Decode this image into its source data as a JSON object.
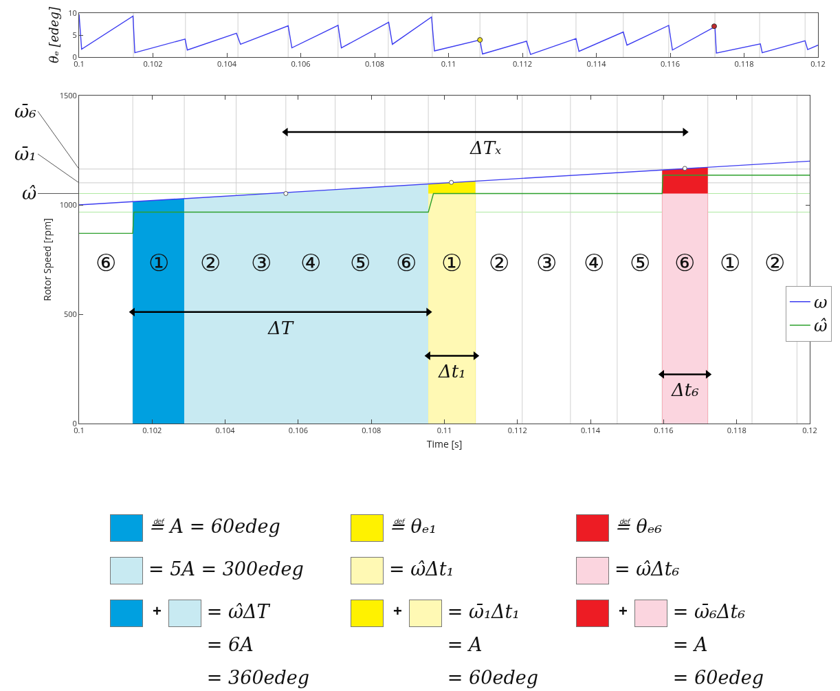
{
  "chart_data": [
    {
      "type": "line",
      "ylabel": "θₑ [edeg]",
      "xlim": [
        0.1,
        0.12
      ],
      "xticks": [
        0.1,
        0.102,
        0.104,
        0.106,
        0.108,
        0.11,
        0.112,
        0.114,
        0.116,
        0.118,
        0.12
      ],
      "ylim": [
        0,
        10
      ],
      "yticks": [
        0,
        5,
        10
      ],
      "marker": "none",
      "series": [
        {
          "color": "#3c3cf0",
          "x": [
            0.1,
            0.10007,
            0.10146,
            0.10151,
            0.10287,
            0.10293,
            0.10426,
            0.10437,
            0.10566,
            0.10576,
            0.10701,
            0.1071,
            0.10838,
            0.10848,
            0.10954,
            0.10962,
            0.11085,
            0.11092,
            0.11211,
            0.11222,
            0.11345,
            0.11353,
            0.11473,
            0.11483,
            0.11596,
            0.11606,
            0.11721,
            0.11725,
            0.11844,
            0.11849,
            0.11965,
            0.11972,
            0.12
          ],
          "values": [
            9.7,
            1.8,
            9.3,
            1.0,
            4.1,
            1.6,
            5.4,
            2.9,
            7.1,
            2.1,
            7.2,
            2.1,
            7.9,
            2.9,
            9.1,
            1.4,
            3.9,
            0.7,
            3.6,
            0.6,
            4.2,
            1.3,
            5.7,
            2.7,
            7.2,
            1.6,
            6.9,
            0.9,
            3.0,
            1.0,
            3.7,
            1.7,
            2.7
          ]
        },
        {
          "type": "scatter",
          "marker": "circle",
          "color": "#f0e020",
          "x": [
            0.11085
          ],
          "values": [
            3.9
          ]
        },
        {
          "type": "scatter",
          "marker": "circle",
          "color": "#c0282d",
          "x": [
            0.11719
          ],
          "values": [
            7.0
          ]
        }
      ],
      "ref_lines": [
        {
          "axis": "x",
          "value": 0.10147,
          "color": "#d0d0d0"
        },
        {
          "axis": "x",
          "value": 0.10288,
          "color": "#d0d0d0"
        },
        {
          "axis": "x",
          "value": 0.1043,
          "color": "#d0d0d0"
        },
        {
          "axis": "x",
          "value": 0.10566,
          "color": "#d0d0d0"
        },
        {
          "axis": "x",
          "value": 0.10701,
          "color": "#d0d0d0"
        },
        {
          "axis": "x",
          "value": 0.10837,
          "color": "#d0d0d0"
        },
        {
          "axis": "x",
          "value": 0.10956,
          "color": "#d0d0d0"
        },
        {
          "axis": "x",
          "value": 0.11085,
          "color": "#d0d0d0"
        },
        {
          "axis": "x",
          "value": 0.11213,
          "color": "#d0d0d0"
        },
        {
          "axis": "x",
          "value": 0.11345,
          "color": "#d0d0d0"
        },
        {
          "axis": "x",
          "value": 0.11473,
          "color": "#d0d0d0"
        },
        {
          "axis": "x",
          "value": 0.11596,
          "color": "#d0d0d0"
        },
        {
          "axis": "x",
          "value": 0.11721,
          "color": "#d0d0d0"
        },
        {
          "axis": "x",
          "value": 0.11842,
          "color": "#d0d0d0"
        },
        {
          "axis": "x",
          "value": 0.11965,
          "color": "#d0d0d0"
        }
      ]
    },
    {
      "type": "line",
      "xlabel": "Time [s]",
      "ylabel": "Rotor Speed [rpm]",
      "xlim": [
        0.1,
        0.12
      ],
      "xticks": [
        0.1,
        0.102,
        0.104,
        0.106,
        0.108,
        0.11,
        0.112,
        0.114,
        0.116,
        0.118,
        0.12
      ],
      "ylim": [
        0,
        1500
      ],
      "yticks": [
        0,
        500,
        1000,
        1500
      ],
      "marker": "none",
      "legend": "right",
      "series": [
        {
          "type": "area",
          "color": "#00a0e0",
          "x": [
            0.10147,
            0.10288
          ],
          "values": [
            1015,
            1029
          ]
        },
        {
          "type": "area",
          "color": "#c8eaf2",
          "x": [
            0.10288,
            0.10956
          ],
          "values": [
            1029,
            1096
          ]
        },
        {
          "type": "area",
          "color": "#fff200",
          "x": [
            0.10956,
            0.11085
          ],
          "values": [
            1096,
            1109
          ]
        },
        {
          "type": "area",
          "color": "#fff9b4",
          "x": [
            0.10956,
            0.11085
          ],
          "values": [
            1052,
            1052
          ]
        },
        {
          "type": "area",
          "color": "#ed1c24",
          "x": [
            0.11596,
            0.11721
          ],
          "values": [
            1160,
            1172
          ]
        },
        {
          "type": "area",
          "color": "#fbd5df",
          "x": [
            0.11596,
            0.11721
          ],
          "values": [
            1052,
            1052
          ]
        },
        {
          "name": "ω",
          "color": "#3c3cf0",
          "x": [
            0.1,
            0.12
          ],
          "values": [
            1000,
            1200
          ]
        },
        {
          "name": "ω̂",
          "color": "#2ca02c",
          "x": [
            0.1,
            0.10147,
            0.1015,
            0.10956,
            0.1097,
            0.11596,
            0.11598,
            0.12
          ],
          "values": [
            870,
            870,
            967,
            967,
            1052,
            1052,
            1136,
            1136
          ]
        },
        {
          "type": "scatter",
          "marker": "circle",
          "color": "#555555",
          "x": [
            0.10566,
            0.11019,
            0.11658
          ],
          "values": [
            1052,
            1103,
            1167
          ]
        },
        {
          "name": "ΔTₓ",
          "marker": "triangle",
          "color": "#000000",
          "x": [
            0.10566,
            0.11658
          ],
          "values": [
            1333,
            1333
          ]
        },
        {
          "name": "ΔT",
          "marker": "triangle",
          "color": "#000000",
          "x": [
            0.10147,
            0.10956
          ],
          "values": [
            510,
            510
          ]
        },
        {
          "name": "Δt₁",
          "marker": "triangle",
          "color": "#000000",
          "x": [
            0.10956,
            0.11085
          ],
          "values": [
            310,
            310
          ]
        },
        {
          "name": "Δt₆",
          "marker": "triangle",
          "color": "#000000",
          "x": [
            0.11596,
            0.11721
          ],
          "values": [
            225,
            225
          ]
        }
      ],
      "ref_lines": [
        {
          "axis": "y",
          "value": 1052,
          "label": "ω̂",
          "color": "#aee8a0"
        },
        {
          "axis": "y",
          "value": 1101,
          "label": "ω̄₁",
          "color": "#cccccc"
        },
        {
          "axis": "y",
          "value": 1164,
          "label": "ω̄₆",
          "color": "#cccccc"
        },
        {
          "axis": "y",
          "value": 967,
          "color": "#aee8a0"
        },
        {
          "axis": "x",
          "value": 0.10147,
          "color": "#d0d0d0"
        },
        {
          "axis": "x",
          "value": 0.10288,
          "color": "#d0d0d0"
        },
        {
          "axis": "x",
          "value": 0.1043,
          "color": "#d0d0d0"
        },
        {
          "axis": "x",
          "value": 0.10566,
          "color": "#d0d0d0"
        },
        {
          "axis": "x",
          "value": 0.10701,
          "color": "#d0d0d0"
        },
        {
          "axis": "x",
          "value": 0.10837,
          "color": "#d0d0d0"
        },
        {
          "axis": "x",
          "value": 0.10956,
          "color": "#d0d0d0"
        },
        {
          "axis": "x",
          "value": 0.11085,
          "color": "#d0d0d0"
        },
        {
          "axis": "x",
          "value": 0.11213,
          "color": "#d0d0d0"
        },
        {
          "axis": "x",
          "value": 0.11345,
          "color": "#d0d0d0"
        },
        {
          "axis": "x",
          "value": 0.11473,
          "color": "#d0d0d0"
        },
        {
          "axis": "x",
          "value": 0.11596,
          "color": "#d0d0d0"
        },
        {
          "axis": "x",
          "value": 0.11721,
          "color": "#d0d0d0"
        },
        {
          "axis": "x",
          "value": 0.11842,
          "color": "#d0d0d0"
        },
        {
          "axis": "x",
          "value": 0.11965,
          "color": "#d0d0d0"
        }
      ],
      "annotations": [
        "⑥",
        "①",
        "②",
        "③",
        "④",
        "⑤",
        "⑥",
        "①",
        "②",
        "③",
        "④",
        "⑤",
        "⑥",
        "①",
        "②"
      ]
    },
    {
      "type": "other",
      "colors": [
        "#00a0e0",
        "#fff200",
        "#ed1c24",
        "#c8eaf2",
        "#fff9b4",
        "#fbd5df"
      ],
      "annotations": [
        "≝ A = 60edeg",
        "≝ θₑ₁",
        "≝ θₑ₆",
        "= 5A = 300edeg",
        "= ω̂Δt₁",
        "= ω̂Δt₆",
        "= ω̂ΔT\n= 6A\n= 360edeg",
        "= ω̄₁Δt₁\n= A\n= 60edeg",
        "= ω̄₆Δt₆\n= A\n= 60edeg",
        "+",
        "+",
        "+"
      ]
    }
  ]
}
